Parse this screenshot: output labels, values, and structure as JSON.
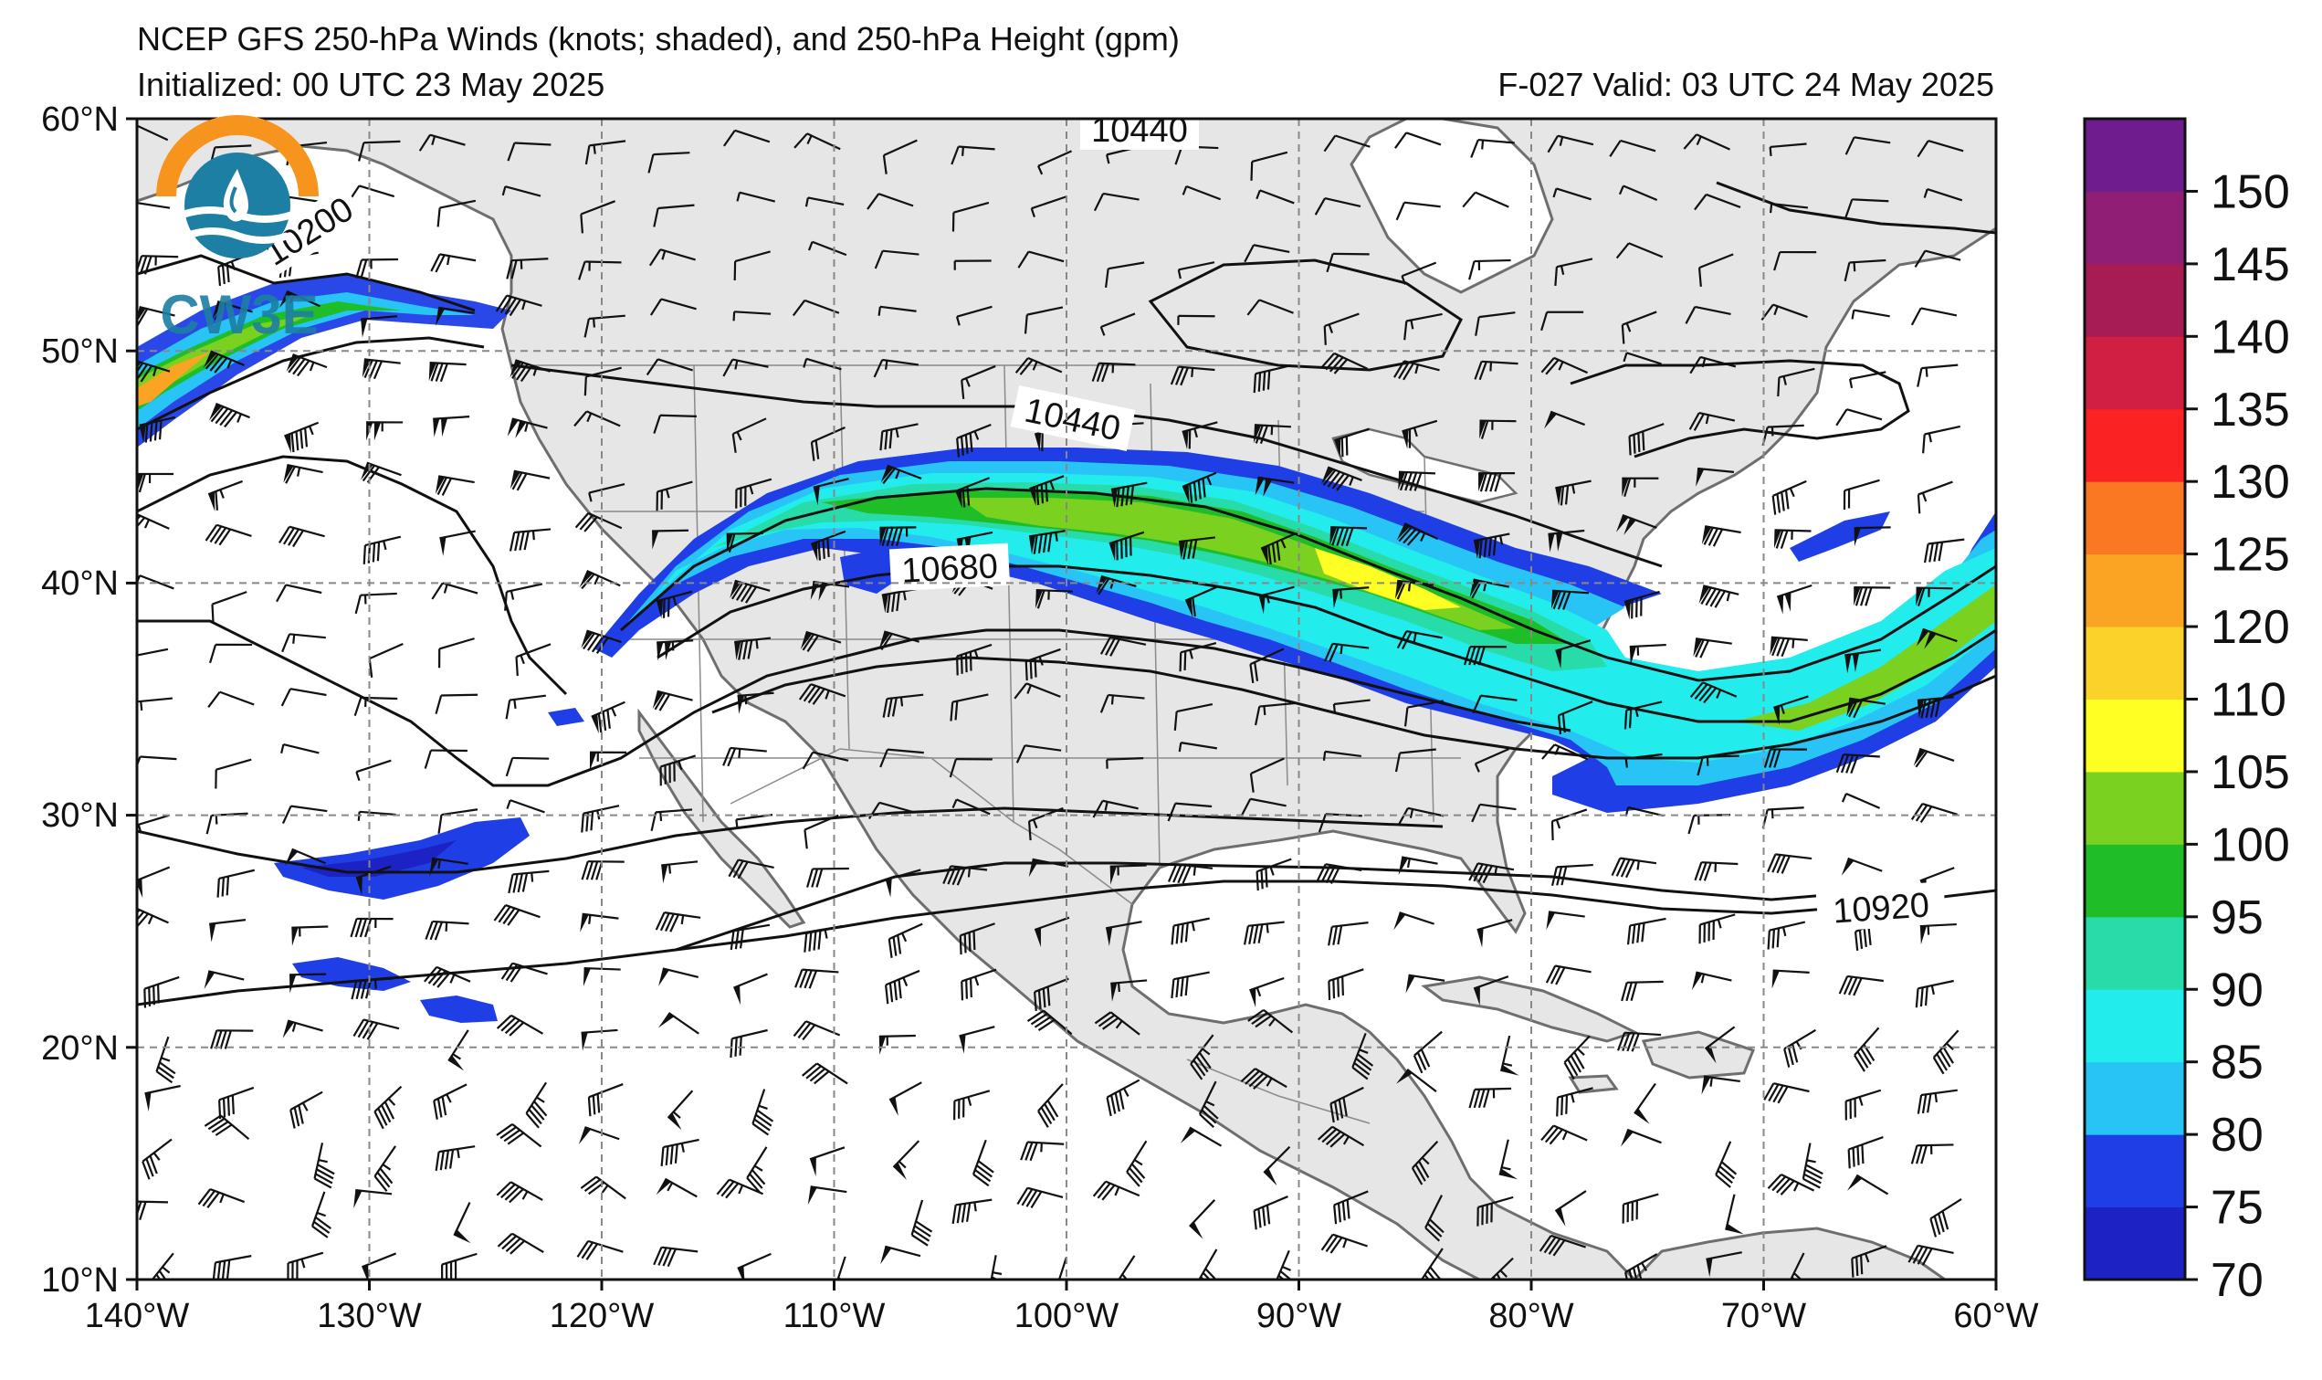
{
  "header": {
    "title": "NCEP GFS 250-hPa Winds (knots; shaded), and 250-hPa Height (gpm)",
    "initialized": "Initialized: 00 UTC 23 May 2025",
    "valid": "F-027  Valid: 03 UTC 24 May 2025"
  },
  "logo": {
    "text": "CW3E",
    "icon": "water-drop-sun-logo-icon"
  },
  "axes": {
    "lon_ticks": [
      "140°W",
      "130°W",
      "120°W",
      "110°W",
      "100°W",
      "90°W",
      "80°W",
      "70°W",
      "60°W"
    ],
    "lat_ticks": [
      "60°N",
      "50°N",
      "40°N",
      "30°N",
      "20°N",
      "10°N"
    ],
    "lon_range": [
      -140,
      -60
    ],
    "lat_range": [
      10,
      60
    ],
    "grid": "dashed"
  },
  "height_contours": {
    "labels": [
      "10200",
      "10440",
      "10440",
      "10680",
      "10920"
    ]
  },
  "colorbar": {
    "levels": [
      70,
      75,
      80,
      85,
      90,
      95,
      100,
      105,
      110,
      120,
      125,
      130,
      135,
      140,
      145,
      150,
      155
    ],
    "colors": [
      "#1c22c4",
      "#1f3ee6",
      "#27c4f5",
      "#22ecec",
      "#27dca8",
      "#1fbe28",
      "#7ad11f",
      "#ffff24",
      "#fbd22a",
      "#fba423",
      "#fb7822",
      "#fa2222",
      "#cf1f42",
      "#a81c54",
      "#8f1f74",
      "#6e1c8e"
    ],
    "tick_labels": [
      "70",
      "75",
      "80",
      "85",
      "90",
      "95",
      "100",
      "105",
      "110",
      "120",
      "125",
      "130",
      "135",
      "140",
      "145",
      "150"
    ]
  },
  "colors": {
    "land": "#e6e6e6",
    "coast": "#6e6e6e",
    "jet_core": "#ffff24"
  }
}
